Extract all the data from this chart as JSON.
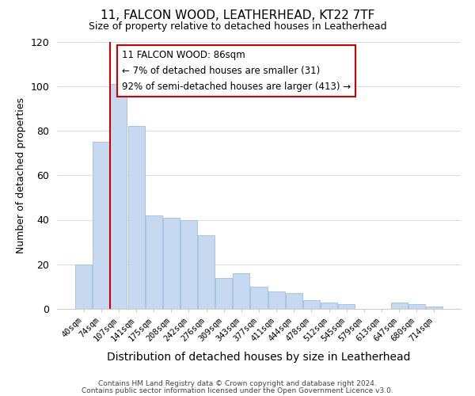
{
  "title": "11, FALCON WOOD, LEATHERHEAD, KT22 7TF",
  "subtitle": "Size of property relative to detached houses in Leatherhead",
  "xlabel": "Distribution of detached houses by size in Leatherhead",
  "ylabel": "Number of detached properties",
  "bar_labels": [
    "40sqm",
    "74sqm",
    "107sqm",
    "141sqm",
    "175sqm",
    "208sqm",
    "242sqm",
    "276sqm",
    "309sqm",
    "343sqm",
    "377sqm",
    "411sqm",
    "444sqm",
    "478sqm",
    "512sqm",
    "545sqm",
    "579sqm",
    "613sqm",
    "647sqm",
    "680sqm",
    "714sqm"
  ],
  "bar_values": [
    20,
    75,
    101,
    82,
    42,
    41,
    40,
    33,
    14,
    16,
    10,
    8,
    7,
    4,
    3,
    2,
    0,
    0,
    3,
    2,
    1
  ],
  "bar_color": "#c6d9f0",
  "bar_edge_color": "#a8c4e0",
  "vline_color": "#cc0000",
  "vline_x_idx": 1.5,
  "ylim": [
    0,
    120
  ],
  "yticks": [
    0,
    20,
    40,
    60,
    80,
    100,
    120
  ],
  "annotation_title": "11 FALCON WOOD: 86sqm",
  "annotation_line1": "← 7% of detached houses are smaller (31)",
  "annotation_line2": "92% of semi-detached houses are larger (413) →",
  "annotation_box_color": "#ffffff",
  "annotation_box_edge": "#cc0000",
  "footer1": "Contains HM Land Registry data © Crown copyright and database right 2024.",
  "footer2": "Contains public sector information licensed under the Open Government Licence v3.0.",
  "background_color": "#ffffff",
  "grid_color": "#d4dce8"
}
